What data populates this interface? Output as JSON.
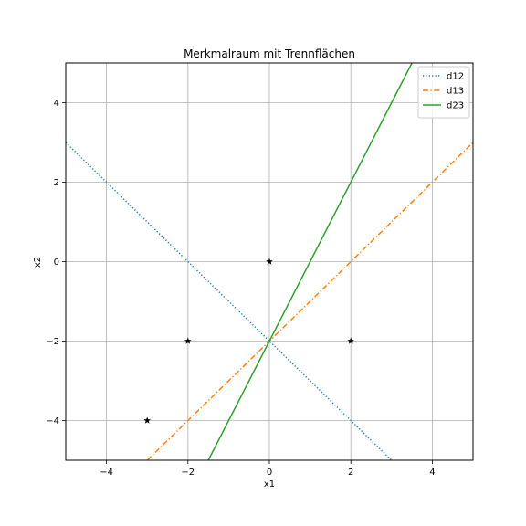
{
  "chart_data": {
    "type": "line",
    "title": "Merkmalraum mit Trennflächen",
    "xlabel": "x1",
    "ylabel": "x2",
    "xlim": [
      -5,
      5
    ],
    "ylim": [
      -5,
      5
    ],
    "x_ticks": [
      -4,
      -2,
      0,
      2,
      4
    ],
    "y_ticks": [
      -4,
      -2,
      0,
      2,
      4
    ],
    "grid": true,
    "legend_position": "top-right",
    "series": [
      {
        "name": "d12",
        "style": "dotted",
        "color": "#1f77b4",
        "points": [
          [
            -5,
            3
          ],
          [
            3,
            -5
          ]
        ]
      },
      {
        "name": "d13",
        "style": "dashdot",
        "color": "#ff7f0e",
        "points": [
          [
            -3,
            -5
          ],
          [
            5,
            3
          ]
        ]
      },
      {
        "name": "d23",
        "style": "solid",
        "color": "#2ca02c",
        "points": [
          [
            -1.5,
            -5
          ],
          [
            3.5,
            5
          ]
        ]
      }
    ],
    "markers": {
      "symbol": "star",
      "color": "#000000",
      "points": [
        [
          0,
          0
        ],
        [
          -2,
          -2
        ],
        [
          2,
          -2
        ],
        [
          -3,
          -4
        ]
      ]
    }
  }
}
